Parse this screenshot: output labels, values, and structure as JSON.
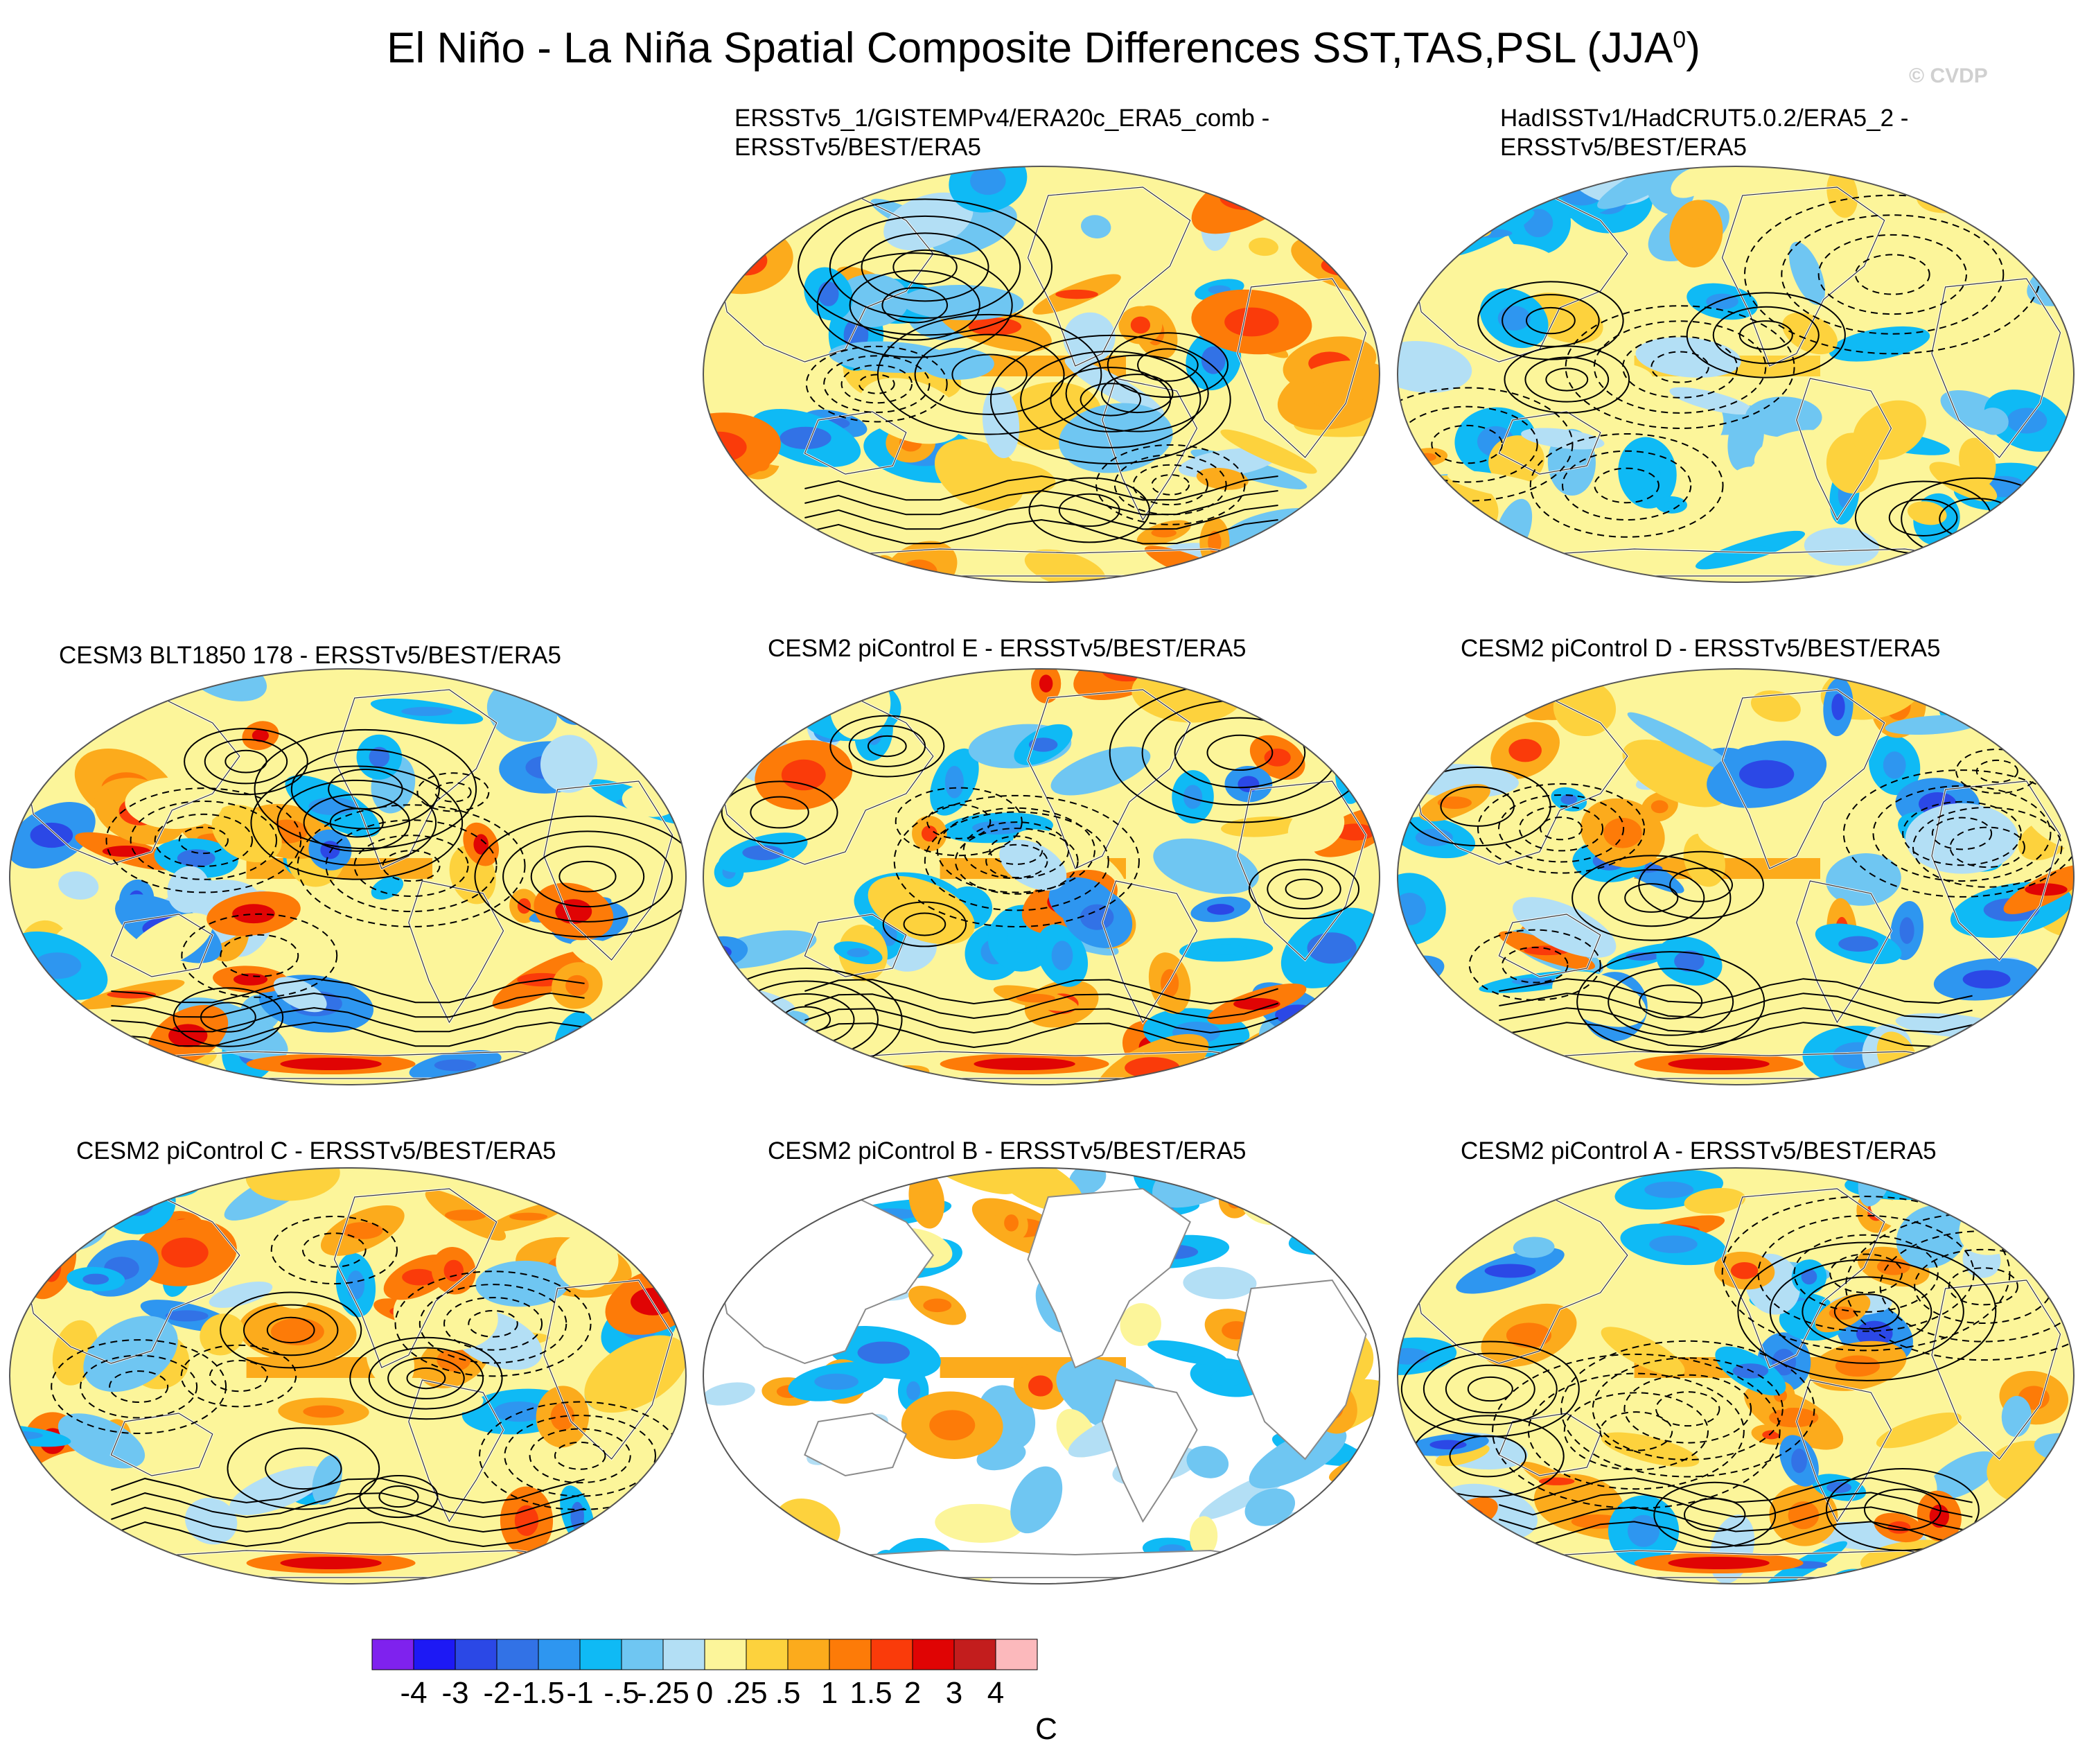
{
  "title": {
    "main": "El Niño - La Niña Spatial Composite Differences SST,TAS,PSL (JJA",
    "superscript": "0",
    "close": ")"
  },
  "credit": "© CVDP",
  "panels": [
    {
      "id": "obs1",
      "title_lines": [
        "ERSSTv5_1/GISTEMPv4/ERA20c_ERA5_comb -",
        "ERSSTv5/BEST/ERA5"
      ],
      "ocean_only": false,
      "seed": 11,
      "amplitude": 1.0,
      "psl": true
    },
    {
      "id": "obs2",
      "title_lines": [
        "HadISSTv1/HadCRUT5.0.2/ERA5_2 -",
        "ERSSTv5/BEST/ERA5"
      ],
      "ocean_only": false,
      "seed": 23,
      "amplitude": 0.55,
      "psl": true
    },
    {
      "id": "cesm3",
      "title_lines": [
        "CESM3 BLT1850 178 - ERSSTv5/BEST/ERA5"
      ],
      "ocean_only": false,
      "seed": 37,
      "amplitude": 1.1,
      "psl": true
    },
    {
      "id": "cesm2e",
      "title_lines": [
        "CESM2 piControl E - ERSSTv5/BEST/ERA5"
      ],
      "ocean_only": false,
      "seed": 41,
      "amplitude": 1.1,
      "psl": true
    },
    {
      "id": "cesm2d",
      "title_lines": [
        "CESM2 piControl D - ERSSTv5/BEST/ERA5"
      ],
      "ocean_only": false,
      "seed": 53,
      "amplitude": 1.05,
      "psl": true
    },
    {
      "id": "cesm2c",
      "title_lines": [
        "CESM2 piControl C - ERSSTv5/BEST/ERA5"
      ],
      "ocean_only": false,
      "seed": 67,
      "amplitude": 1.0,
      "psl": true
    },
    {
      "id": "cesm2b",
      "title_lines": [
        "CESM2 piControl B - ERSSTv5/BEST/ERA5"
      ],
      "ocean_only": true,
      "seed": 79,
      "amplitude": 0.8,
      "psl": false
    },
    {
      "id": "cesm2a",
      "title_lines": [
        "CESM2 piControl A - ERSSTv5/BEST/ERA5"
      ],
      "ocean_only": false,
      "seed": 83,
      "amplitude": 1.05,
      "psl": true
    }
  ],
  "colorbar": {
    "levels": [
      "-4",
      "-3",
      "-2",
      "-1.5",
      "-1",
      "-.5",
      "-.25",
      "0",
      ".25",
      ".5",
      "1",
      "1.5",
      "2",
      "3",
      "4"
    ],
    "colors": [
      "#7f22ee",
      "#1d19f5",
      "#2b48e6",
      "#3272e6",
      "#2e96f0",
      "#0fbaf5",
      "#6fc6f2",
      "#b3dff5",
      "#fcf59a",
      "#fdd23d",
      "#fcab1c",
      "#fd7b08",
      "#fa3b0a",
      "#e00404",
      "#c31d1d",
      "#fcb9bc"
    ],
    "units": "C"
  },
  "chart_data": {
    "type": "heatmap",
    "title": "El Niño - La Niña Spatial Composite Differences SST,TAS,PSL (JJA0)",
    "variables": [
      "SST",
      "TAS",
      "PSL"
    ],
    "season": "JJA",
    "projection": "Robinson global",
    "shading_levels": [
      -4,
      -3,
      -2,
      -1.5,
      -1,
      -0.5,
      -0.25,
      0,
      0.25,
      0.5,
      1,
      1.5,
      2,
      3,
      4
    ],
    "units": "C",
    "psl_contours": "solid positive, dashed negative",
    "panels": [
      "ERSSTv5_1/GISTEMPv4/ERA20c_ERA5_comb - ERSSTv5/BEST/ERA5",
      "HadISSTv1/HadCRUT5.0.2/ERA5_2 - ERSSTv5/BEST/ERA5",
      "CESM3 BLT1850 178 - ERSSTv5/BEST/ERA5",
      "CESM2 piControl E - ERSSTv5/BEST/ERA5",
      "CESM2 piControl D - ERSSTv5/BEST/ERA5",
      "CESM2 piControl C - ERSSTv5/BEST/ERA5",
      "CESM2 piControl B - ERSSTv5/BEST/ERA5",
      "CESM2 piControl A - ERSSTv5/BEST/ERA5"
    ]
  }
}
